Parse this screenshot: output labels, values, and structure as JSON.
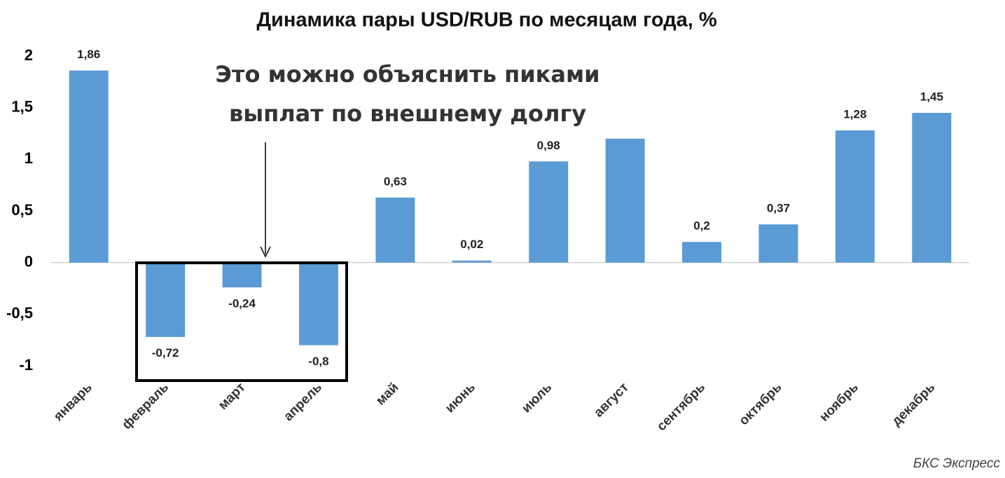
{
  "chart_data": {
    "type": "bar",
    "title": "Динамика пары USD/RUB по месяцам года, %",
    "annotation": [
      "Это можно объяснить пиками",
      "выплат по внешнему долгу"
    ],
    "source": "БКС Экспресс",
    "categories": [
      "январь",
      "февраль",
      "март",
      "апрель",
      "май",
      "июнь",
      "июль",
      "август",
      "сентябрь",
      "октябрь",
      "ноябрь",
      "декабрь"
    ],
    "values": [
      1.86,
      -0.72,
      -0.24,
      -0.8,
      0.63,
      0.02,
      0.98,
      1.2,
      0.2,
      0.37,
      1.28,
      1.45
    ],
    "value_labels": [
      "1,86",
      "-0,72",
      "-0,24",
      "-0,8",
      "0,63",
      "0,02",
      "0,98",
      null,
      "0,2",
      "0,37",
      "1,28",
      "1,45"
    ],
    "color": "#5b9bd5",
    "ylim": [
      -1,
      2
    ],
    "yticks": [
      2,
      {
        "value": 1.5,
        "label": "1,5"
      },
      1,
      {
        "value": 0.5,
        "label": "0,5"
      },
      0,
      {
        "value": -0.5,
        "label": "-0,5"
      },
      -1
    ],
    "grid": false
  }
}
